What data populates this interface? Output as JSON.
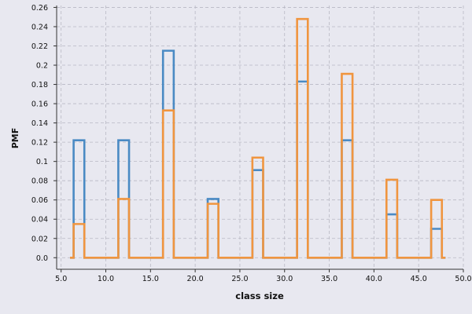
{
  "chart_data": {
    "type": "line",
    "xlabel": "class size",
    "ylabel": "PMF",
    "xlim": [
      4.5,
      50.0
    ],
    "ylim": [
      -0.012,
      0.262
    ],
    "x_ticks": [
      5.0,
      10.0,
      15.0,
      20.0,
      25.0,
      30.0,
      35.0,
      40.0,
      45.0,
      50.0
    ],
    "x_tick_labels": [
      "5.0",
      "10.0",
      "15.0",
      "20.0",
      "25.0",
      "30.0",
      "35.0",
      "40.0",
      "45.0",
      "50.0"
    ],
    "y_ticks": [
      0.0,
      0.02,
      0.04,
      0.06,
      0.08,
      0.1,
      0.12,
      0.14,
      0.16,
      0.18,
      0.2,
      0.22,
      0.24,
      0.26
    ],
    "y_tick_labels": [
      "0.0",
      "0.02",
      "0.04",
      "0.06",
      "0.08",
      "0.1",
      "0.12",
      "0.14",
      "0.16",
      "0.18",
      "0.2",
      "0.22",
      "0.24",
      "0.26"
    ],
    "grid": true,
    "background": "#e8e8f0",
    "series": [
      {
        "color": "#4a8ac4",
        "x": [
          7,
          12,
          17,
          22,
          27,
          32,
          37,
          42,
          47
        ],
        "y": [
          0.122,
          0.122,
          0.215,
          0.061,
          0.091,
          0.183,
          0.122,
          0.045,
          0.03
        ]
      },
      {
        "color": "#f0953f",
        "x": [
          7,
          12,
          17,
          22,
          27,
          32,
          37,
          42,
          47
        ],
        "y": [
          0.035,
          0.061,
          0.153,
          0.056,
          0.104,
          0.248,
          0.191,
          0.081,
          0.06
        ]
      }
    ]
  }
}
